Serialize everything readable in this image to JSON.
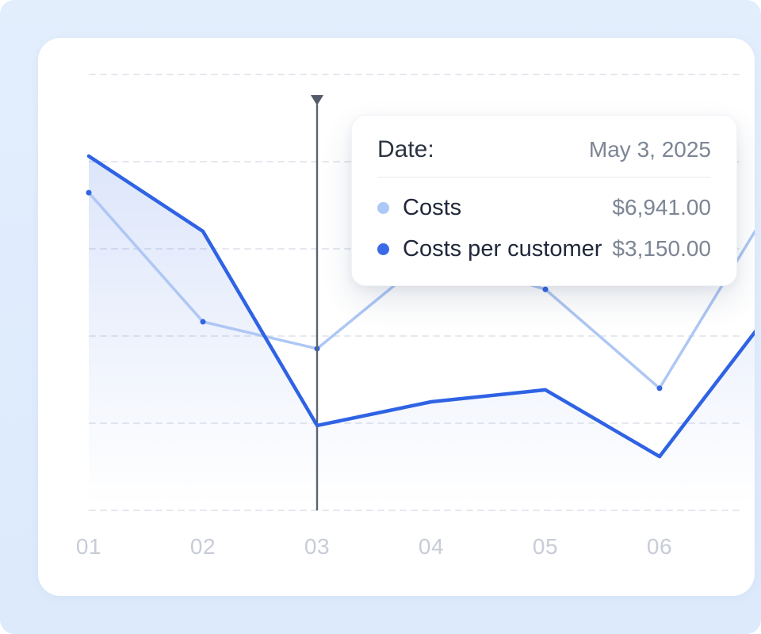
{
  "tooltip": {
    "date_label": "Date:",
    "date_value": "May 3, 2025",
    "rows": [
      {
        "name": "Costs",
        "value": "$6,941.00",
        "dot_color": "#abc8f7"
      },
      {
        "name": "Costs per customer",
        "value": "$3,150.00",
        "dot_color": "#3b6ae8"
      }
    ]
  },
  "chart_data": {
    "type": "line",
    "title": "",
    "xlabel": "",
    "ylabel": "",
    "categories": [
      "01",
      "02",
      "03",
      "04",
      "05",
      "06"
    ],
    "value_range": [
      0,
      20000
    ],
    "grid": "horizontal-dashed",
    "legend_position": "tooltip-only",
    "series": [
      {
        "name": "Costs",
        "color": "#aec7f4",
        "marker_color": "#3365e0",
        "markers": true,
        "area_fill": false,
        "values": [
          14640,
          8270,
          6941,
          11550,
          9870,
          4990
        ],
        "offscreen_next_value": 14250,
        "values_estimated_from_pixels": true
      },
      {
        "name": "Costs per customer",
        "color": "#2f63e4",
        "markers": false,
        "area_fill": true,
        "values": [
          16440,
          12730,
          3150,
          4320,
          4910,
          1620
        ],
        "offscreen_next_value": 8970,
        "values_estimated_from_pixels": true
      }
    ],
    "highlight": {
      "category": "03",
      "category_index": 2,
      "date": "May 3, 2025",
      "exact_values": {
        "Costs": 6941.0,
        "Costs per customer": 3150.0
      }
    }
  },
  "colors": {
    "page_background": "#dfeafc",
    "card_background": "#ffffff",
    "grid_line": "#e5e8ee",
    "crosshair": "#5b6270",
    "crosshair_triangle": "#535a68",
    "axis_label": "#c7ccd6",
    "area_gradient_top": "rgba(47,99,226,0.17)",
    "area_gradient_bottom": "rgba(47,99,226,0)"
  }
}
